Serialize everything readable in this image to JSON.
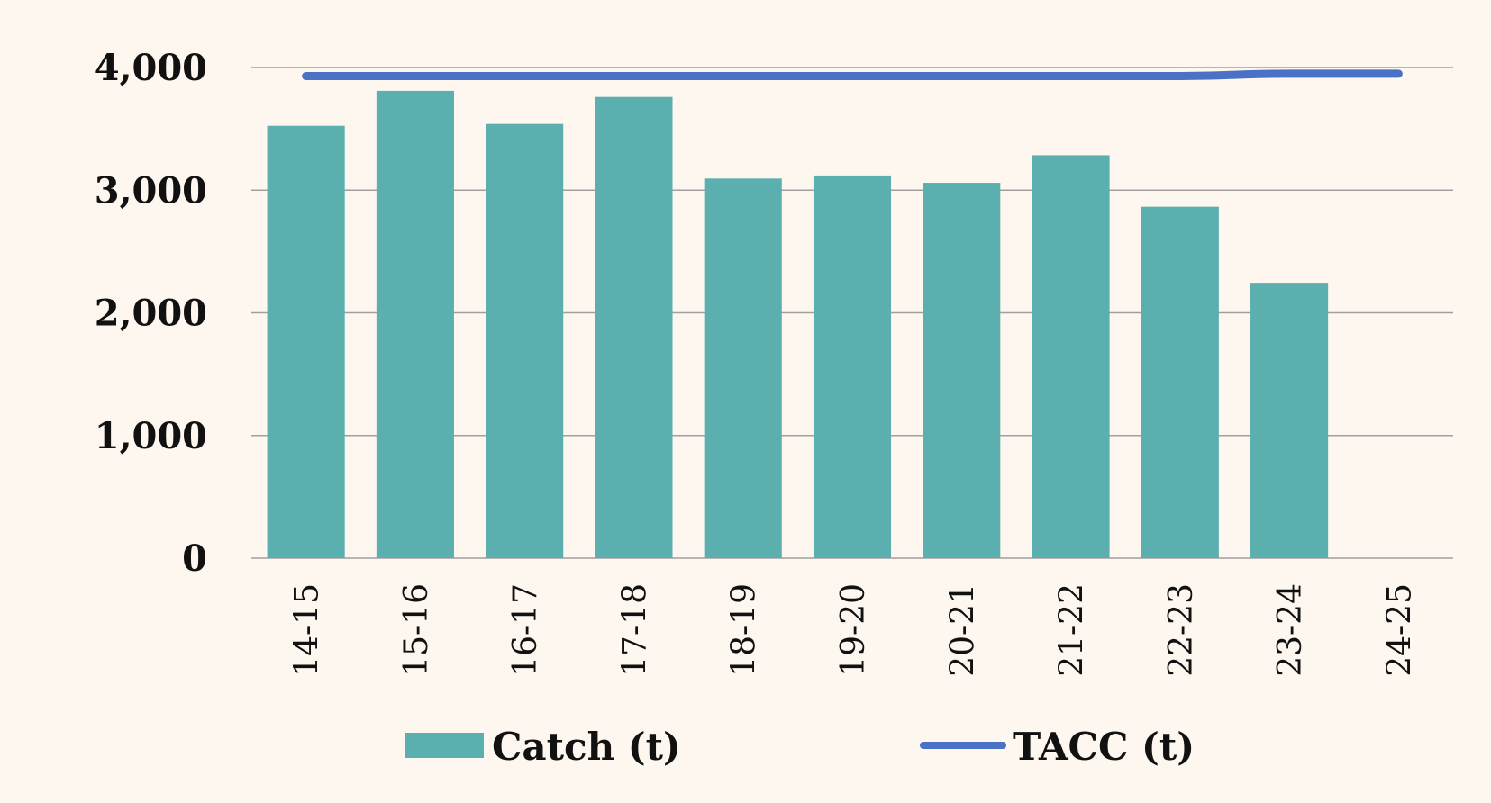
{
  "chart_data": {
    "type": "bar",
    "categories": [
      "14-15",
      "15-16",
      "16-17",
      "17-18",
      "18-19",
      "19-20",
      "20-21",
      "21-22",
      "22-23",
      "23-24",
      "24-25"
    ],
    "series": [
      {
        "name": "Catch (t)",
        "type": "bar",
        "color": "#5bafae",
        "values": [
          3525,
          3810,
          3540,
          3760,
          3095,
          3120,
          3060,
          3285,
          2865,
          2245,
          null
        ]
      },
      {
        "name": "TACC (t)",
        "type": "line",
        "color": "#4a72c4",
        "values": [
          3930,
          3930,
          3930,
          3930,
          3930,
          3930,
          3930,
          3930,
          3930,
          3950,
          3950
        ]
      }
    ],
    "y_ticks": [
      "0",
      "1,000",
      "2,000",
      "3,000",
      "4,000"
    ],
    "ylim": [
      0,
      4000
    ],
    "grid": true,
    "legend_position": "bottom",
    "colors": {
      "background": "#fdf7f0",
      "grid": "#a0a0a0",
      "text": "#111111"
    }
  }
}
